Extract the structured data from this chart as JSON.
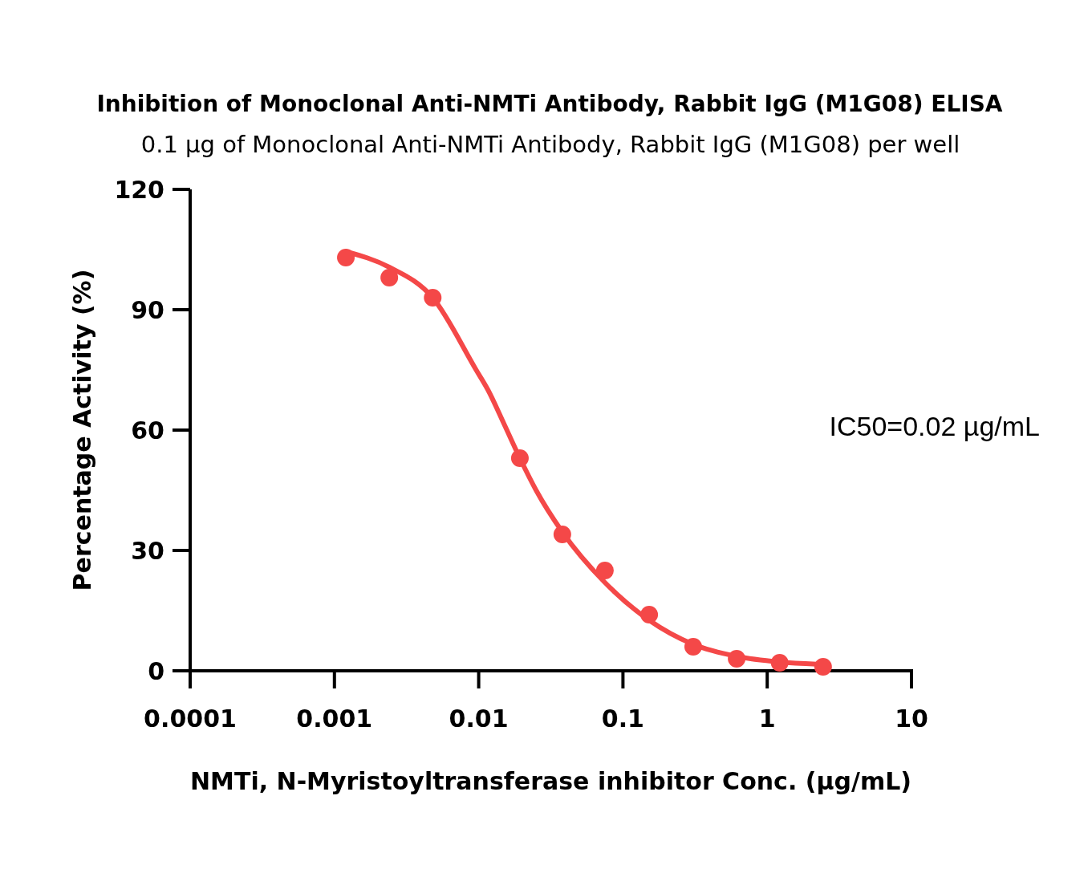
{
  "chart_data": {
    "type": "scatter",
    "title": "Inhibition of Monoclonal Anti-NMTi Antibody, Rabbit IgG (M1G08) ELISA",
    "subtitle": "0.1 µg of Monoclonal Anti-NMTi Antibody, Rabbit IgG (M1G08) per well",
    "xlabel": "NMTi, N-Myristoyltransferase inhibitor Conc. (µg/mL)",
    "ylabel": "Percentage Activity (%)",
    "annotations": [
      "IC50=0.02 µg/mL"
    ],
    "log": "x",
    "xlim": [
      0.0001,
      10
    ],
    "xticks": [
      0.0001,
      0.001,
      0.01,
      0.1,
      1,
      10
    ],
    "ylim": [
      0,
      120
    ],
    "yticks": [
      0,
      30,
      60,
      90,
      120
    ],
    "marker": "circle",
    "series": [
      {
        "type": "line",
        "marker": "none",
        "color": "#f44848",
        "x": [
          0.0012,
          0.0024,
          0.0048,
          0.0096,
          0.0116,
          0.015,
          0.0193,
          0.025,
          0.038,
          0.075,
          0.152,
          0.307,
          0.614,
          1.22,
          2.44
        ],
        "values": [
          104.5,
          100.6,
          93,
          75,
          70,
          61.5,
          53,
          45,
          34.6,
          22,
          12.6,
          6.6,
          3.6,
          2.2,
          1.6
        ]
      },
      {
        "color": "#f44848",
        "x": [
          0.0012,
          0.0024,
          0.0048,
          0.0193,
          0.038,
          0.075,
          0.152,
          0.307,
          0.614,
          1.22,
          2.44
        ],
        "values": [
          103,
          98,
          93,
          53,
          34,
          25,
          14,
          6,
          3,
          2,
          1
        ]
      }
    ]
  }
}
